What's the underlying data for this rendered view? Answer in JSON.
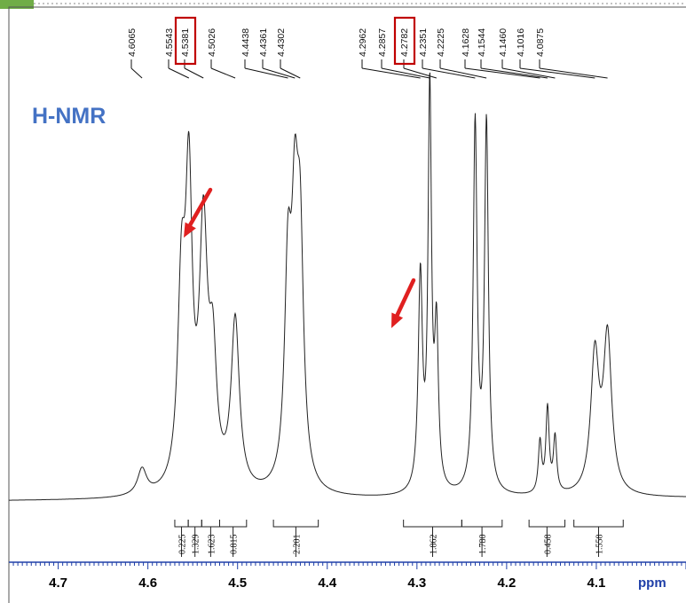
{
  "chart_data": {
    "type": "line",
    "title": "H-NMR",
    "xlabel": "ppm",
    "xlim": [
      4.755,
      4.0
    ],
    "x_ticks": [
      4.7,
      4.6,
      4.5,
      4.4,
      4.3,
      4.2,
      4.1
    ],
    "peak_labels": [
      "4.6065",
      "4.5543",
      "4.5381",
      "4.5026",
      "4.4438",
      "4.4361",
      "4.4302",
      "4.2962",
      "4.2857",
      "4.2782",
      "4.2351",
      "4.2225",
      "4.1628",
      "4.1544",
      "4.1460",
      "4.1016",
      "4.0875"
    ],
    "highlighted_peak_labels": [
      "4.5381",
      "4.2782"
    ],
    "integrals": [
      {
        "from": 4.57,
        "to": 4.555,
        "value": "0.225"
      },
      {
        "from": 4.555,
        "to": 4.54,
        "value": "1.329"
      },
      {
        "from": 4.54,
        "to": 4.52,
        "value": "1.623"
      },
      {
        "from": 4.52,
        "to": 4.49,
        "value": "0.815"
      },
      {
        "from": 4.46,
        "to": 4.41,
        "value": "2.201"
      },
      {
        "from": 4.315,
        "to": 4.25,
        "value": "1.862"
      },
      {
        "from": 4.25,
        "to": 4.205,
        "value": "1.780"
      },
      {
        "from": 4.175,
        "to": 4.135,
        "value": "0.458"
      },
      {
        "from": 4.125,
        "to": 4.07,
        "value": "1.558"
      }
    ],
    "peaks": [
      {
        "ppm": 4.6065,
        "height": 0.07,
        "width": 0.006
      },
      {
        "ppm": 4.5625,
        "height": 0.52,
        "width": 0.005
      },
      {
        "ppm": 4.5543,
        "height": 0.77,
        "width": 0.0045
      },
      {
        "ppm": 4.5381,
        "height": 0.68,
        "width": 0.0055
      },
      {
        "ppm": 4.5276,
        "height": 0.32,
        "width": 0.005
      },
      {
        "ppm": 4.5026,
        "height": 0.46,
        "width": 0.0055
      },
      {
        "ppm": 4.4438,
        "height": 0.55,
        "width": 0.0045
      },
      {
        "ppm": 4.4361,
        "height": 0.62,
        "width": 0.0045
      },
      {
        "ppm": 4.4302,
        "height": 0.6,
        "width": 0.0045
      },
      {
        "ppm": 4.2962,
        "height": 0.58,
        "width": 0.0028
      },
      {
        "ppm": 4.2857,
        "height": 1.08,
        "width": 0.0023
      },
      {
        "ppm": 4.2782,
        "height": 0.42,
        "width": 0.0025
      },
      {
        "ppm": 4.2351,
        "height": 1.0,
        "width": 0.0026
      },
      {
        "ppm": 4.2225,
        "height": 1.0,
        "width": 0.0026
      },
      {
        "ppm": 4.1628,
        "height": 0.14,
        "width": 0.0022
      },
      {
        "ppm": 4.1544,
        "height": 0.23,
        "width": 0.0022
      },
      {
        "ppm": 4.146,
        "height": 0.15,
        "width": 0.0022
      },
      {
        "ppm": 4.1016,
        "height": 0.37,
        "width": 0.0055
      },
      {
        "ppm": 4.0875,
        "height": 0.42,
        "width": 0.0055
      }
    ],
    "arrow_targets_ppm": [
      4.5381,
      4.2782
    ],
    "colors": {
      "title": "#4472c4",
      "axis": "#1f3fa8",
      "axis_labels": "#000000",
      "arrow": "#e02020",
      "highlight_box": "#c00000",
      "trace": "#222222",
      "tab": "#70ad47"
    }
  }
}
